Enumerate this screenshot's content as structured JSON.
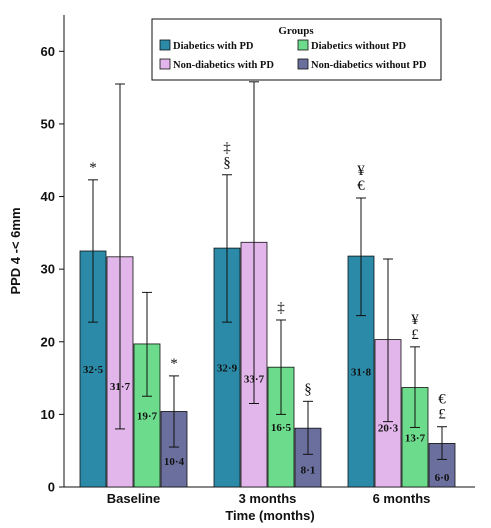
{
  "chart_data": {
    "type": "bar",
    "title": "",
    "xlabel": "Time (months)",
    "ylabel": "PPD 4 -< 6mm",
    "ylim": [
      0,
      65
    ],
    "yticks": [
      0,
      10,
      20,
      30,
      40,
      50,
      60
    ],
    "categories": [
      "Baseline",
      "3 months",
      "6 months"
    ],
    "legend": {
      "title": "Groups",
      "position": "top-right"
    },
    "series": [
      {
        "name": "Diabetics with PD",
        "color": "#2b8aa8",
        "values": [
          32.5,
          32.9,
          31.8
        ],
        "labels": [
          "32·5",
          "32·9",
          "31·8"
        ],
        "error_low": [
          22.7,
          22.7,
          23.6
        ],
        "error_high": [
          42.3,
          43.0,
          39.8
        ],
        "markers": [
          "*",
          "‡\n§",
          "¥\n€"
        ]
      },
      {
        "name": "Non-diabetics with PD",
        "color": "#e2b6ea",
        "values": [
          31.7,
          33.7,
          20.3
        ],
        "labels": [
          "31·7",
          "33·7",
          "20·3"
        ],
        "error_low": [
          8.0,
          11.5,
          9.0
        ],
        "error_high": [
          55.5,
          55.8,
          31.4
        ],
        "markers": [
          "",
          "",
          ""
        ]
      },
      {
        "name": "Diabetics without PD",
        "color": "#6cdc8c",
        "values": [
          19.7,
          16.5,
          13.7
        ],
        "labels": [
          "19·7",
          "16·5",
          "13·7"
        ],
        "error_low": [
          12.5,
          10.0,
          8.2
        ],
        "error_high": [
          26.8,
          23.0,
          19.3
        ],
        "markers": [
          "",
          "‡",
          "¥\n£"
        ]
      },
      {
        "name": "Non-diabetics without PD",
        "color": "#6b6f9e",
        "values": [
          10.4,
          8.1,
          6.0
        ],
        "labels": [
          "10·4",
          "8·1",
          "6·0"
        ],
        "error_low": [
          5.5,
          4.5,
          3.8
        ],
        "error_high": [
          15.3,
          11.8,
          8.3
        ],
        "markers": [
          "*",
          "§",
          "€\n£"
        ]
      }
    ]
  }
}
